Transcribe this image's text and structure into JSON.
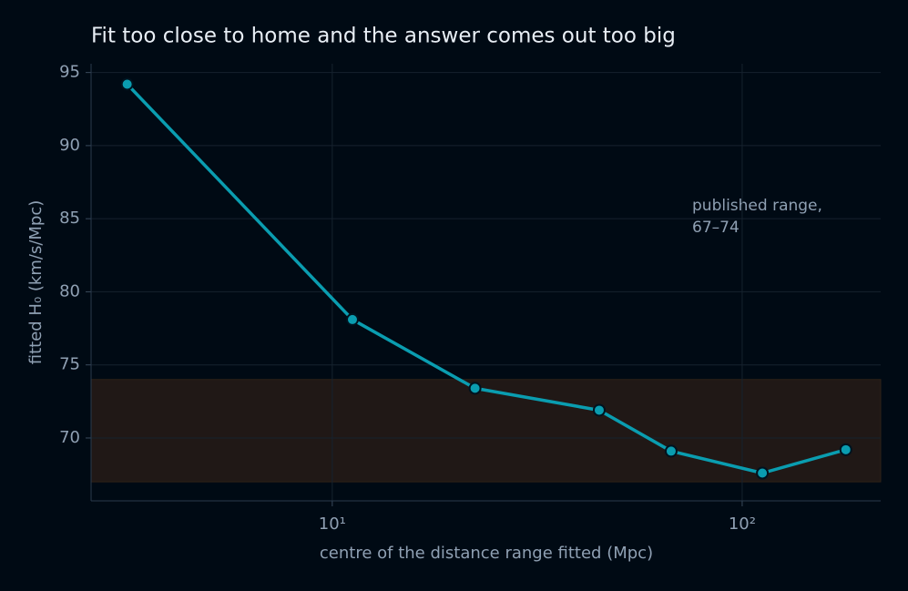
{
  "chart_data": {
    "type": "line",
    "title": "Fit too close to home and the answer comes out too big",
    "x_label": "centre of the distance range fitted (Mpc)",
    "y_label": "fitted H₀ (km/s/Mpc)",
    "x_scale": "log",
    "x": [
      3.16,
      11.2,
      22.3,
      44.8,
      67.1,
      112,
      179
    ],
    "series": [
      {
        "name": "fitted H₀",
        "color": "#0a9db0",
        "values": [
          94.2,
          78.1,
          73.4,
          71.9,
          69.1,
          67.6,
          69.2
        ]
      }
    ],
    "xlim": [
      2.58,
      217.7
    ],
    "xticks": [
      {
        "value": 10,
        "label": "10¹"
      },
      {
        "value": 100,
        "label": "10²"
      }
    ],
    "ylim": [
      65.7,
      95.6
    ],
    "yticks": [
      70,
      75,
      80,
      85,
      90,
      95
    ],
    "grid": true,
    "band": {
      "range": [
        67,
        74
      ],
      "color": "#201816",
      "label": [
        "published range,",
        "67–74"
      ]
    }
  }
}
